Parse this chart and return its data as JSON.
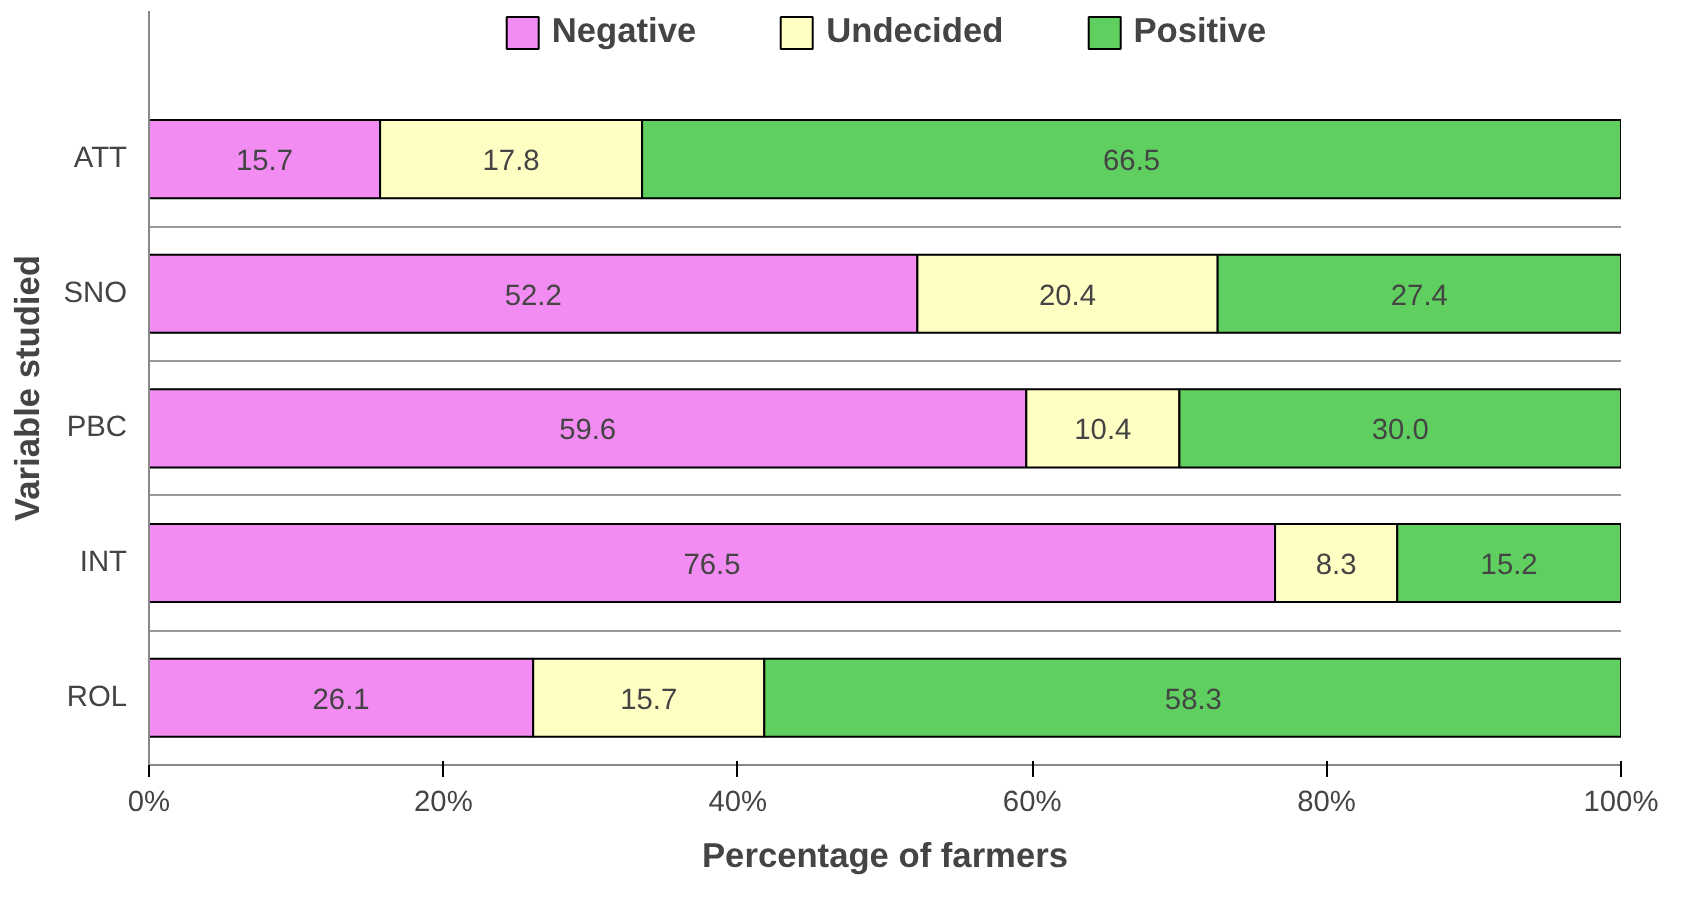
{
  "chart_data": {
    "type": "bar",
    "orientation": "horizontal",
    "stacked": true,
    "xlabel": "Percentage of farmers",
    "ylabel": "Variable studied",
    "categories": [
      "ATT",
      "SNO",
      "PBC",
      "INT",
      "ROL"
    ],
    "series": [
      {
        "name": "Negative",
        "color": "#f28cf2",
        "values": [
          15.7,
          52.2,
          59.6,
          76.5,
          26.1
        ],
        "value_labels": [
          "15.7",
          "52.2",
          "59.6",
          "76.5",
          "26.1"
        ]
      },
      {
        "name": "Undecided",
        "color": "#ffffc4",
        "values": [
          17.8,
          20.4,
          10.4,
          8.3,
          15.7
        ],
        "value_labels": [
          "17.8",
          "20.4",
          "10.4",
          "8.3",
          "15.7"
        ]
      },
      {
        "name": "Positive",
        "color": "#5fd05f",
        "values": [
          66.5,
          27.4,
          30.0,
          15.2,
          58.3
        ],
        "value_labels": [
          "66.5",
          "27.4",
          "30.0",
          "15.2",
          "58.3"
        ]
      }
    ],
    "xlim": [
      0,
      100
    ],
    "xticks": [
      {
        "value": 0,
        "label": "0%"
      },
      {
        "value": 20,
        "label": "20%"
      },
      {
        "value": 40,
        "label": "40%"
      },
      {
        "value": 60,
        "label": "60%"
      },
      {
        "value": 80,
        "label": "80%"
      },
      {
        "value": 100,
        "label": "100%"
      }
    ],
    "grid": "y",
    "legend": "top"
  }
}
